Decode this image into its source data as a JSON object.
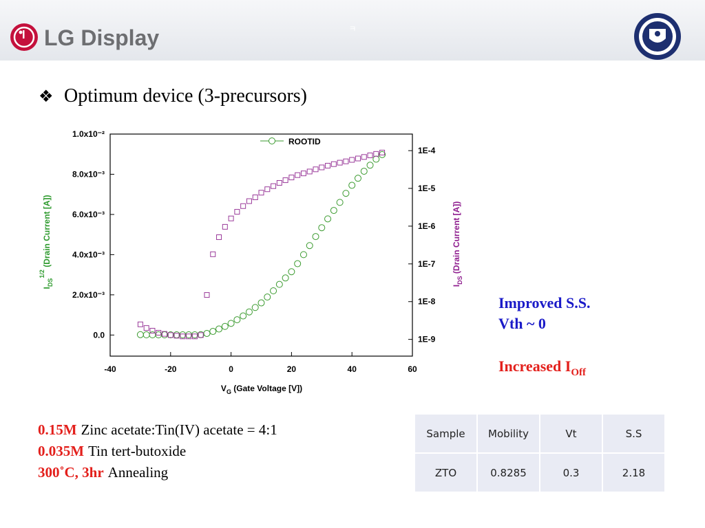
{
  "header": {
    "logo": "LG Display",
    "mark": "ㅋ"
  },
  "title": {
    "bullet": "❖",
    "text": "Optimum device (3-precursors)"
  },
  "chart_data": {
    "type": "scatter",
    "x_label": {
      "main": "V",
      "sub": "G",
      "rest": " (Gate Voltage [V])"
    },
    "y_label": {
      "main": "I",
      "sub": "DS",
      "sup": "1/2",
      "rest": " (Drain Current [A])"
    },
    "y2_label": {
      "main": "I",
      "sub": "DS",
      "rest": " (Drain Current [A])"
    },
    "xlim": [
      -40,
      60
    ],
    "xticks": [
      -40,
      -20,
      0,
      20,
      40,
      60
    ],
    "ylim": [
      -0.00105,
      0.01
    ],
    "yticks": [
      {
        "value": 0,
        "label": "0.0"
      },
      {
        "value": 0.002,
        "label": "2.0x10⁻³"
      },
      {
        "value": 0.004,
        "label": "4.0x10⁻³"
      },
      {
        "value": 0.006,
        "label": "6.0x10⁻³"
      },
      {
        "value": 0.008,
        "label": "8.0x10⁻³"
      },
      {
        "value": 0.01,
        "label": "1.0x10⁻²"
      }
    ],
    "y2lim": [
      3.6e-10,
      0.000275
    ],
    "y2log": true,
    "y2ticks": [
      {
        "value": 1e-09,
        "label": "1E-9"
      },
      {
        "value": 1e-08,
        "label": "1E-8"
      },
      {
        "value": 1e-07,
        "label": "1E-7"
      },
      {
        "value": 1e-06,
        "label": "1E-6"
      },
      {
        "value": 1e-05,
        "label": "1E-5"
      },
      {
        "value": 0.0001,
        "label": "1E-4"
      }
    ],
    "legend": "top",
    "x": [
      -30,
      -28,
      -26,
      -24,
      -22,
      -20,
      -18,
      -16,
      -14,
      -12,
      -10,
      -8,
      -6,
      -4,
      -2,
      0,
      2,
      4,
      6,
      8,
      10,
      12,
      14,
      16,
      18,
      20,
      22,
      24,
      26,
      28,
      30,
      32,
      34,
      36,
      38,
      40,
      42,
      44,
      46,
      48,
      50
    ],
    "series": [
      {
        "name": "ROOTID",
        "color": "#3a9a2e",
        "marker": "circle",
        "values": [
          2e-05,
          1e-05,
          1e-05,
          1e-05,
          1e-05,
          1e-05,
          1e-05,
          1e-05,
          1e-05,
          1e-05,
          2e-05,
          8e-05,
          0.00018,
          0.0003,
          0.00043,
          0.00058,
          0.00076,
          0.00095,
          0.00115,
          0.00137,
          0.0016,
          0.00189,
          0.0022,
          0.00252,
          0.00284,
          0.00315,
          0.00355,
          0.004,
          0.00445,
          0.0049,
          0.00534,
          0.00578,
          0.0062,
          0.0066,
          0.00705,
          0.00745,
          0.0078,
          0.00815,
          0.00845,
          0.00875,
          0.00898
        ]
      },
      {
        "color": "#9a3a9a",
        "marker": "square",
        "axis": "y2",
        "values": [
          2.5e-09,
          2e-09,
          1.7e-09,
          1.5e-09,
          1.4e-09,
          1.3e-09,
          1.25e-09,
          1.2e-09,
          1.2e-09,
          1.2e-09,
          1.3e-09,
          1.5e-08,
          1.8e-07,
          5.1e-07,
          9.6e-07,
          1.6e-06,
          2.4e-06,
          3.4e-06,
          4.6e-06,
          5.8e-06,
          7.7e-06,
          9.5e-06,
          1.15e-05,
          1.4e-05,
          1.65e-05,
          1.95e-05,
          2.25e-05,
          2.5e-05,
          2.8e-05,
          3.2e-05,
          3.6e-05,
          4e-05,
          4.4e-05,
          4.8e-05,
          5.2e-05,
          5.7e-05,
          6.2e-05,
          6.8e-05,
          7.5e-05,
          8.2e-05,
          8.9e-05
        ]
      }
    ]
  },
  "notes": {
    "improved": "Improved S.S.",
    "vth": "Vth ~ 0",
    "increased": {
      "main": "Increased I",
      "sub": "Off"
    }
  },
  "recipe": [
    {
      "highlight": "0.15M",
      "text": "Zinc acetate:Tin(IV) acetate = 4:1"
    },
    {
      "highlight": "0.035M",
      "text": "Tin tert-butoxide"
    },
    {
      "highlight": "300˚C, 3hr",
      "text": "Annealing"
    }
  ],
  "table": {
    "header": [
      "Sample",
      "Mobility",
      "Vt",
      "S.S"
    ],
    "rows": [
      [
        "ZTO",
        0.8285,
        0.3,
        2.18
      ]
    ]
  }
}
